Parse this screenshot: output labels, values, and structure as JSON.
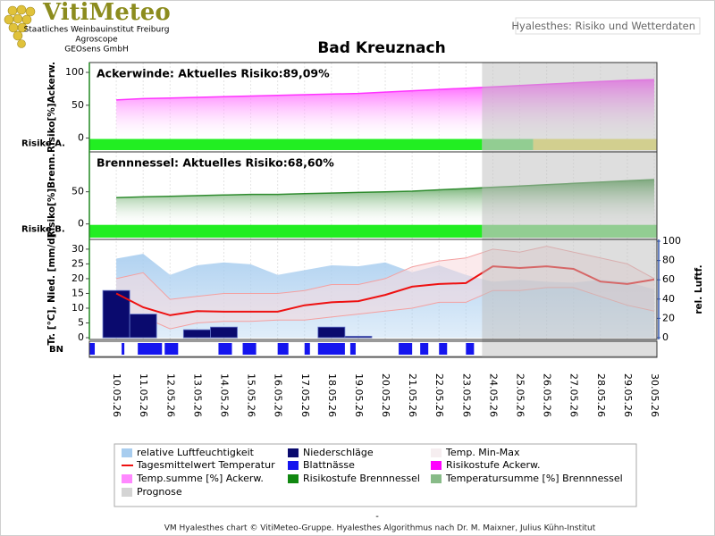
{
  "header": {
    "logo": "VitiMeteo",
    "lines": [
      "Staatliches Weinbauinstitut Freiburg",
      "Agroscope",
      "GEOsens GmbH"
    ],
    "tab": "Hyalesthes: Risiko und Wetterdaten"
  },
  "chart_data": {
    "type": "combo",
    "title": "Bad Kreuznach",
    "x": [
      "10.05.26",
      "11.05.26",
      "12.05.26",
      "13.05.26",
      "14.05.26",
      "15.05.26",
      "16.05.26",
      "17.05.26",
      "18.05.26",
      "19.05.26",
      "20.05.26",
      "21.05.26",
      "22.05.26",
      "23.05.26",
      "24.05.26",
      "25.05.26",
      "26.05.26",
      "27.05.26",
      "28.05.26",
      "29.05.26",
      "30.05.26"
    ],
    "xlim": [
      -1,
      20.1
    ],
    "prognosis_start": 13.6,
    "prognosis_color": "#bdbdbd",
    "panels": [
      {
        "type": "area",
        "label": "Ackerwinde: Aktuelles Risiko:89,09%",
        "ylabel": "Risiko[%]Ackerw.",
        "risk_label": "Risiko A.",
        "ylim": [
          -21,
          115
        ],
        "yticks": [
          0,
          50,
          100
        ],
        "color": "#ff33ff",
        "values": [
          58,
          60,
          61,
          62,
          63,
          64,
          65,
          66,
          67,
          68,
          70,
          72,
          74,
          76,
          78,
          80,
          82,
          84,
          86,
          88,
          89
        ],
        "risk_segments": [
          {
            "from": -1,
            "to": 13.6,
            "color": "#22ee22"
          },
          {
            "from": 13.6,
            "to": 15.5,
            "color": "#66dd66"
          },
          {
            "from": 15.5,
            "to": 20.1,
            "color": "#e6e060"
          }
        ]
      },
      {
        "type": "area",
        "label": "Brennnessel: Aktuelles Risiko:68,60%",
        "ylabel": "Risiko[%]Brenn.",
        "risk_label": "Risiko B.",
        "ylim": [
          -24,
          112
        ],
        "yticks": [
          0,
          50
        ],
        "color": "#2e8b2e",
        "values": [
          41,
          42,
          43,
          44,
          45,
          46,
          46,
          47,
          48,
          49,
          50,
          51,
          53,
          55,
          57,
          59,
          61,
          63,
          65,
          67,
          69
        ],
        "risk_segments": [
          {
            "from": -1,
            "to": 13.6,
            "color": "#22ee22"
          },
          {
            "from": 13.6,
            "to": 20.1,
            "color": "#66dd66"
          }
        ]
      },
      {
        "type": "weather",
        "ylabel": "Tr. [°C], Nied. [mm/d]",
        "y2label": "rel. Luftf.",
        "ylim": [
          -0.6,
          33.3
        ],
        "yticks": [
          0,
          5,
          10,
          15,
          20,
          25,
          30
        ],
        "y2lim": [
          -1.9,
          101.9
        ],
        "y2ticks": [
          0,
          20,
          40,
          60,
          80,
          100
        ],
        "humidity": {
          "axis": "y2",
          "color": "#a8cdef",
          "values": [
            82,
            87,
            65,
            75,
            78,
            76,
            65,
            70,
            75,
            74,
            78,
            68,
            75,
            65,
            58,
            60,
            58,
            57,
            60,
            58,
            50
          ]
        },
        "temp_max": {
          "color": "#f4a0a0",
          "values": [
            20,
            22,
            13,
            14,
            15,
            15,
            15,
            16,
            18,
            18,
            20,
            24,
            26,
            27,
            30,
            29,
            31,
            29,
            27,
            25,
            20
          ]
        },
        "temp_min": {
          "color": "#f4a0a0",
          "values": [
            9,
            7,
            3,
            5,
            5.5,
            5.5,
            6,
            6,
            7,
            8,
            9,
            10,
            12,
            12,
            16,
            16,
            17,
            17,
            14,
            11,
            9
          ]
        },
        "temp_mean": {
          "color": "#ee1111",
          "values": [
            15,
            10.3,
            7.6,
            9,
            8.8,
            8.8,
            8.8,
            11,
            12,
            12.4,
            14.5,
            17.3,
            18.2,
            18.5,
            24.2,
            23.6,
            24.2,
            23.3,
            19,
            18.2,
            19.7
          ]
        },
        "precipitation": {
          "color": "#0a0a6e",
          "values": [
            16,
            8,
            0,
            2.7,
            3.6,
            0,
            0,
            0,
            3.6,
            0.5,
            0,
            0,
            0,
            0,
            0,
            0,
            0,
            0,
            0,
            0,
            0
          ]
        },
        "leaf_wetness": {
          "label": "BN",
          "color": "#1515ee",
          "intervals": [
            [
              -1,
              -0.8
            ],
            [
              0.2,
              0.3
            ],
            [
              0.8,
              1.7
            ],
            [
              1.8,
              2.3
            ],
            [
              3.8,
              4.3
            ],
            [
              4.7,
              5.2
            ],
            [
              6,
              6.4
            ],
            [
              7,
              7.2
            ],
            [
              7.5,
              8.5
            ],
            [
              8.7,
              8.9
            ],
            [
              10.5,
              11
            ],
            [
              11.3,
              11.6
            ],
            [
              12,
              12.3
            ],
            [
              13,
              13.3
            ]
          ]
        }
      }
    ],
    "legend": [
      {
        "label": "relative Luftfeuchtigkeit",
        "color": "#a8cdef"
      },
      {
        "label": "Niederschläge",
        "color": "#0a0a6e"
      },
      {
        "label": "Temp. Min-Max",
        "color": "#f6eef0"
      },
      {
        "label": "Tagesmittelwert Temperatur",
        "color": "#ee1111",
        "style": "line"
      },
      {
        "label": "Blattnässe",
        "color": "#1515ee"
      },
      {
        "label": "Risikostufe Ackerw.",
        "color": "#ff00ff"
      },
      {
        "label": "Temp.summe [%] Ackerw.",
        "color": "#ff88ff"
      },
      {
        "label": "Risikostufe Brennnessel",
        "color": "#118811"
      },
      {
        "label": "Temperatursumme [%] Brennnessel",
        "color": "#88bb88"
      },
      {
        "label": "Prognose",
        "color": "#d4d4d4"
      }
    ]
  },
  "dash": "-",
  "footer": "VM Hyalesthes chart © VitiMeteo-Gruppe. Hyalesthes Algorithmus nach Dr. M. Maixner, Julius Kühn-Institut"
}
